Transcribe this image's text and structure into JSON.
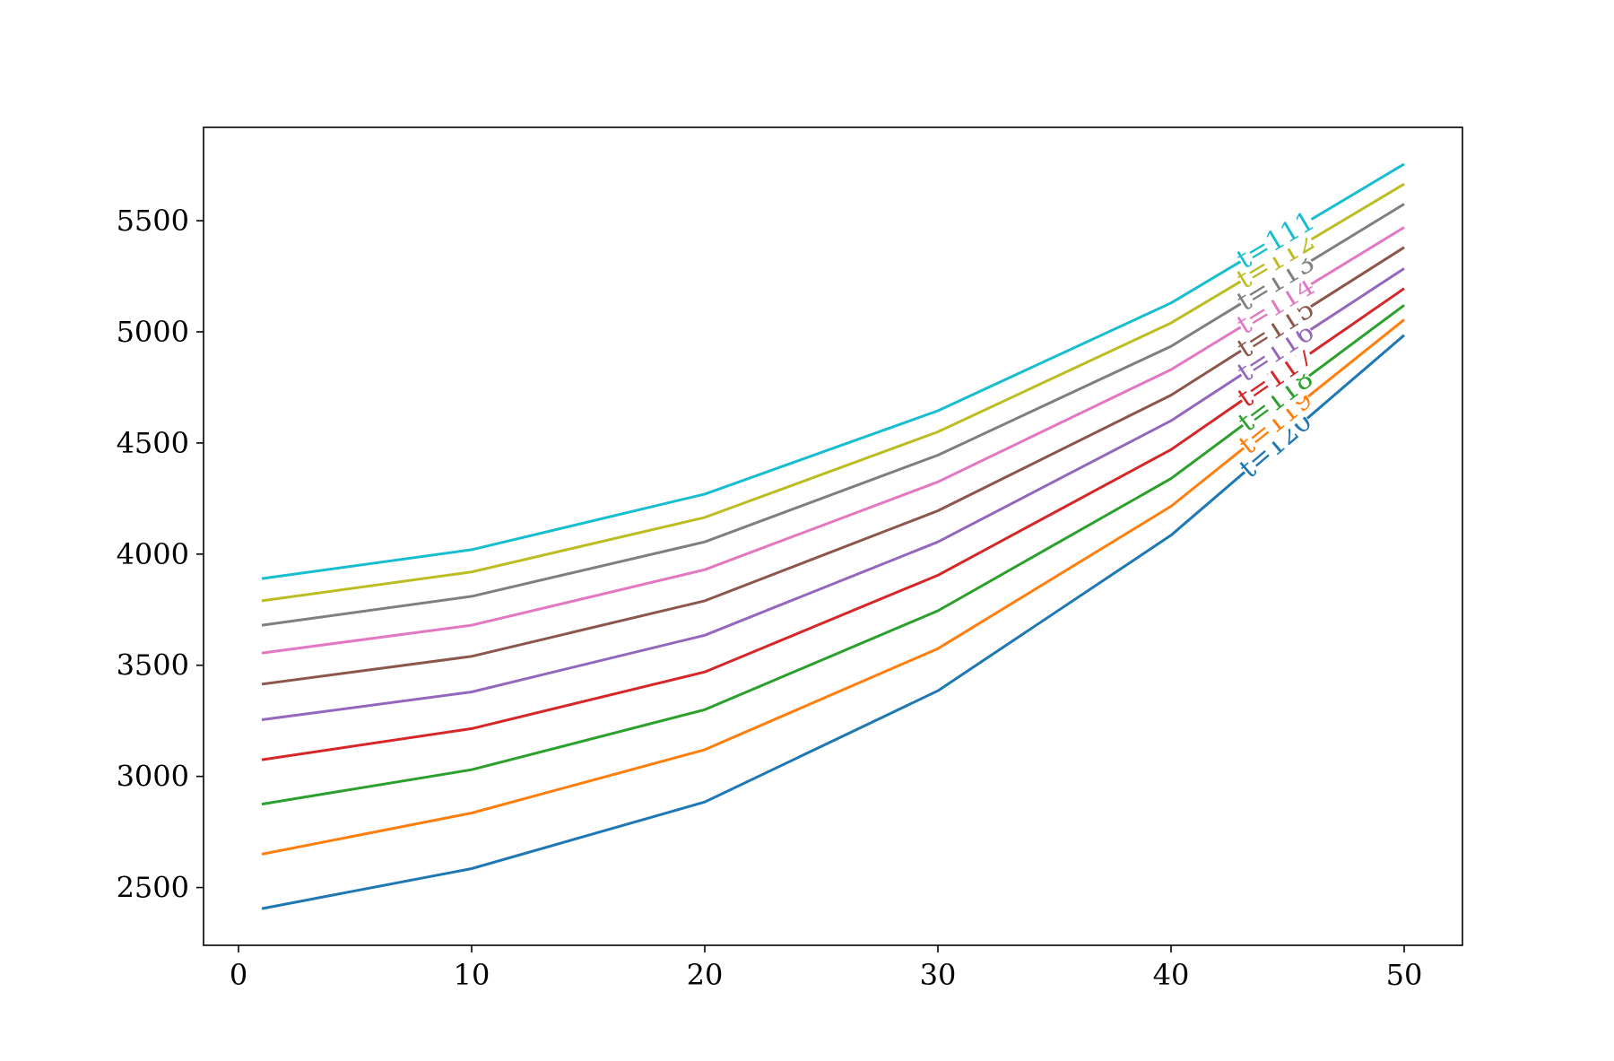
{
  "chart_data": {
    "type": "line",
    "title": "",
    "xlabel": "",
    "ylabel": "",
    "x": [
      1,
      10,
      20,
      30,
      40,
      50
    ],
    "xlim": [
      -1.5,
      52.5
    ],
    "ylim": [
      2240,
      5920
    ],
    "xticks": [
      0,
      10,
      20,
      30,
      40,
      50
    ],
    "yticks": [
      2500,
      3000,
      3500,
      4000,
      4500,
      5000,
      5500
    ],
    "xtick_labels": [
      "0",
      "10",
      "20",
      "30",
      "40",
      "50"
    ],
    "ytick_labels": [
      "2500",
      "3000",
      "3500",
      "4000",
      "4500",
      "5000",
      "5500"
    ],
    "grid": false,
    "legend": "none",
    "inline_labels": true,
    "series": [
      {
        "name": "t=120",
        "color": "#1f77b4",
        "values": [
          2405,
          2585,
          2885,
          3385,
          4085,
          4985
        ]
      },
      {
        "name": "t=119",
        "color": "#ff7f0e",
        "values": [
          2650,
          2835,
          3120,
          3575,
          4215,
          5055
        ]
      },
      {
        "name": "t=118",
        "color": "#2ca02c",
        "values": [
          2875,
          3030,
          3300,
          3745,
          4340,
          5120
        ]
      },
      {
        "name": "t=117",
        "color": "#d62728",
        "values": [
          3075,
          3215,
          3470,
          3905,
          4470,
          5195
        ]
      },
      {
        "name": "t=116",
        "color": "#9467bd",
        "values": [
          3255,
          3380,
          3635,
          4055,
          4600,
          5285
        ]
      },
      {
        "name": "t=115",
        "color": "#8c564b",
        "values": [
          3415,
          3540,
          3790,
          4195,
          4715,
          5380
        ]
      },
      {
        "name": "t=114",
        "color": "#e377c2",
        "values": [
          3555,
          3680,
          3930,
          4325,
          4830,
          5470
        ]
      },
      {
        "name": "t=113",
        "color": "#7f7f7f",
        "values": [
          3680,
          3810,
          4055,
          4445,
          4935,
          5575
        ]
      },
      {
        "name": "t=112",
        "color": "#bcbd22",
        "values": [
          3790,
          3920,
          4165,
          4550,
          5040,
          5665
        ]
      },
      {
        "name": "t=111",
        "color": "#17becf",
        "values": [
          3890,
          4020,
          4270,
          4645,
          5130,
          5755
        ]
      }
    ]
  }
}
